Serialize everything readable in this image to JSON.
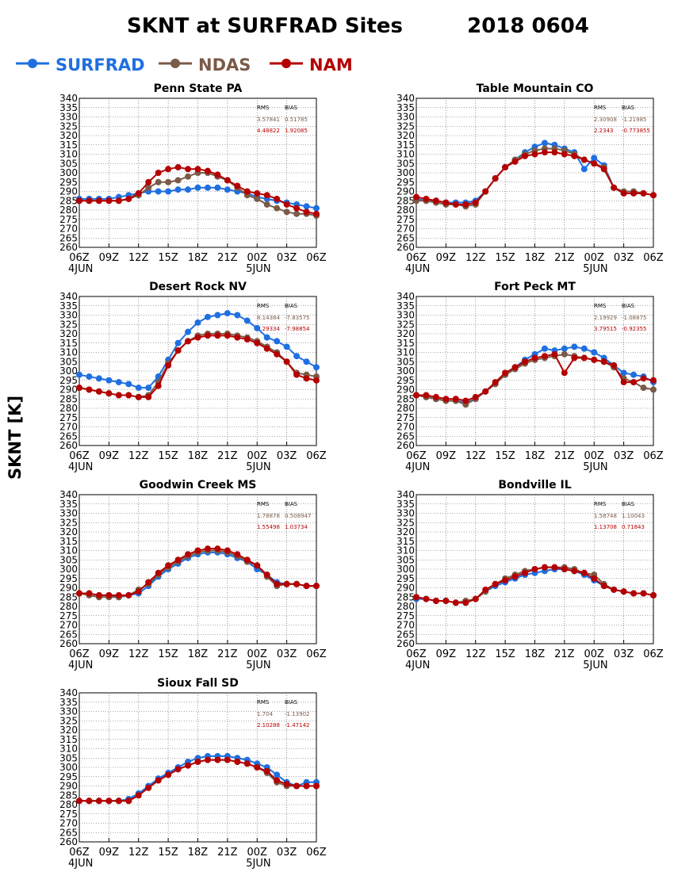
{
  "title": "SKNT at SURFRAD Sites",
  "date": "2018 0604",
  "ylabel": "SKNT [K]",
  "legend": [
    {
      "name": "SURFRAD",
      "color": "#1f6fe0"
    },
    {
      "name": "NDAS",
      "color": "#7a5a48"
    },
    {
      "name": "NAM",
      "color": "#b50000"
    }
  ],
  "stats_header": {
    "rms": "RMS",
    "bias": "BIAS"
  },
  "chart_data": [
    {
      "type": "line",
      "title": "Penn State PA",
      "ylim": [
        260,
        340
      ],
      "yticks": [
        260,
        265,
        270,
        275,
        280,
        285,
        290,
        295,
        300,
        305,
        310,
        315,
        320,
        325,
        330,
        335,
        340
      ],
      "xticks": [
        "06Z",
        "09Z",
        "12Z",
        "15Z",
        "18Z",
        "21Z",
        "00Z",
        "03Z",
        "06Z"
      ],
      "date_labels": [
        "4JUN",
        "5JUN"
      ],
      "x": [
        0,
        1,
        2,
        3,
        4,
        5,
        6,
        7,
        8,
        9,
        10,
        11,
        12,
        13,
        14,
        15,
        16,
        17,
        18,
        19,
        20,
        21,
        22,
        23,
        24
      ],
      "stats": [
        {
          "series": "NDAS",
          "rms": "3.57841",
          "bias": "0.51785"
        },
        {
          "series": "NAM",
          "rms": "4.48822",
          "bias": "1.92085"
        }
      ],
      "series": [
        {
          "name": "SURFRAD",
          "values": [
            286,
            286,
            286,
            286,
            287,
            288,
            289,
            290,
            290,
            290,
            291,
            291,
            292,
            292,
            292,
            291,
            290,
            289,
            287,
            286,
            285,
            284,
            283,
            282,
            281
          ]
        },
        {
          "name": "NDAS",
          "values": [
            285,
            285,
            285,
            285,
            285,
            286,
            288,
            292,
            295,
            295,
            296,
            298,
            300,
            300,
            298,
            296,
            292,
            288,
            286,
            283,
            281,
            279,
            278,
            278,
            277
          ]
        },
        {
          "name": "NAM",
          "values": [
            285,
            285,
            285,
            285,
            285,
            286,
            289,
            295,
            300,
            302,
            303,
            302,
            302,
            301,
            299,
            296,
            293,
            290,
            289,
            288,
            286,
            283,
            281,
            279,
            278
          ]
        }
      ]
    },
    {
      "type": "line",
      "title": "Table Mountain CO",
      "ylim": [
        260,
        340
      ],
      "yticks": [
        260,
        265,
        270,
        275,
        280,
        285,
        290,
        295,
        300,
        305,
        310,
        315,
        320,
        325,
        330,
        335,
        340
      ],
      "xticks": [
        "06Z",
        "09Z",
        "12Z",
        "15Z",
        "18Z",
        "21Z",
        "00Z",
        "03Z",
        "06Z"
      ],
      "date_labels": [
        "4JUN",
        "5JUN"
      ],
      "x": [
        0,
        1,
        2,
        3,
        4,
        5,
        6,
        7,
        8,
        9,
        10,
        11,
        12,
        13,
        14,
        15,
        16,
        17,
        18,
        19,
        20,
        21,
        22,
        23,
        24
      ],
      "stats": [
        {
          "series": "NDAS",
          "rms": "2.30908",
          "bias": "-1.21985"
        },
        {
          "series": "NAM",
          "rms": "2.2343",
          "bias": "-0.773855"
        }
      ],
      "series": [
        {
          "name": "SURFRAD",
          "values": [
            286,
            285,
            285,
            284,
            284,
            284,
            285,
            290,
            297,
            303,
            307,
            311,
            314,
            316,
            315,
            313,
            311,
            302,
            308,
            304,
            292,
            289,
            289,
            289,
            288
          ]
        },
        {
          "name": "NDAS",
          "values": [
            285,
            285,
            284,
            283,
            283,
            282,
            283,
            290,
            297,
            303,
            307,
            310,
            312,
            313,
            313,
            312,
            310,
            307,
            305,
            303,
            292,
            290,
            290,
            289,
            288
          ]
        },
        {
          "name": "NAM",
          "values": [
            287,
            286,
            285,
            284,
            283,
            283,
            284,
            290,
            297,
            303,
            306,
            309,
            310,
            311,
            311,
            310,
            309,
            307,
            305,
            302,
            292,
            289,
            289,
            289,
            288
          ]
        }
      ]
    },
    {
      "type": "line",
      "title": "Desert Rock NV",
      "ylim": [
        260,
        340
      ],
      "yticks": [
        260,
        265,
        270,
        275,
        280,
        285,
        290,
        295,
        300,
        305,
        310,
        315,
        320,
        325,
        330,
        335,
        340
      ],
      "xticks": [
        "06Z",
        "09Z",
        "12Z",
        "15Z",
        "18Z",
        "21Z",
        "00Z",
        "03Z",
        "06Z"
      ],
      "date_labels": [
        "4JUN",
        "5JUN"
      ],
      "x": [
        0,
        1,
        2,
        3,
        4,
        5,
        6,
        7,
        8,
        9,
        10,
        11,
        12,
        13,
        14,
        15,
        16,
        17,
        18,
        19,
        20,
        21,
        22,
        23,
        24
      ],
      "stats": [
        {
          "series": "NDAS",
          "rms": "8.14384",
          "bias": "-7.83575"
        },
        {
          "series": "NAM",
          "rms": "8.29334",
          "bias": "-7.98854"
        }
      ],
      "series": [
        {
          "name": "SURFRAD",
          "values": [
            298,
            297,
            296,
            295,
            294,
            293,
            291,
            291,
            297,
            306,
            315,
            321,
            326,
            329,
            330,
            331,
            330,
            327,
            323,
            318,
            316,
            313,
            308,
            305,
            302
          ]
        },
        {
          "name": "NDAS",
          "values": [
            291,
            290,
            289,
            288,
            287,
            287,
            286,
            287,
            294,
            304,
            311,
            316,
            319,
            320,
            320,
            320,
            319,
            318,
            316,
            313,
            310,
            305,
            299,
            298,
            297
          ]
        },
        {
          "name": "NAM",
          "values": [
            291,
            290,
            289,
            288,
            287,
            287,
            286,
            286,
            292,
            303,
            311,
            316,
            318,
            319,
            319,
            319,
            318,
            317,
            315,
            312,
            309,
            305,
            298,
            296,
            295
          ]
        }
      ]
    },
    {
      "type": "line",
      "title": "Fort Peck MT",
      "ylim": [
        260,
        340
      ],
      "yticks": [
        260,
        265,
        270,
        275,
        280,
        285,
        290,
        295,
        300,
        305,
        310,
        315,
        320,
        325,
        330,
        335,
        340
      ],
      "xticks": [
        "06Z",
        "09Z",
        "12Z",
        "15Z",
        "18Z",
        "21Z",
        "00Z",
        "03Z",
        "06Z"
      ],
      "date_labels": [
        "4JUN",
        "5JUN"
      ],
      "x": [
        0,
        1,
        2,
        3,
        4,
        5,
        6,
        7,
        8,
        9,
        10,
        11,
        12,
        13,
        14,
        15,
        16,
        17,
        18,
        19,
        20,
        21,
        22,
        23,
        24
      ],
      "stats": [
        {
          "series": "NDAS",
          "rms": "2.19929",
          "bias": "-1.08875"
        },
        {
          "series": "NAM",
          "rms": "3.79515",
          "bias": "-0.92355"
        }
      ],
      "series": [
        {
          "name": "SURFRAD",
          "values": [
            287,
            286,
            285,
            284,
            284,
            283,
            285,
            289,
            293,
            298,
            302,
            306,
            309,
            312,
            311,
            312,
            313,
            312,
            310,
            307,
            303,
            299,
            298,
            297,
            294
          ]
        },
        {
          "name": "NDAS",
          "values": [
            287,
            286,
            285,
            284,
            284,
            282,
            285,
            289,
            293,
            298,
            301,
            304,
            306,
            307,
            308,
            309,
            308,
            307,
            306,
            305,
            302,
            296,
            294,
            291,
            290
          ]
        },
        {
          "name": "NAM",
          "values": [
            287,
            287,
            286,
            285,
            285,
            284,
            286,
            289,
            294,
            299,
            302,
            305,
            307,
            308,
            309,
            299,
            307,
            307,
            306,
            305,
            303,
            294,
            294,
            296,
            295
          ]
        }
      ]
    },
    {
      "type": "line",
      "title": "Goodwin Creek MS",
      "ylim": [
        260,
        340
      ],
      "yticks": [
        260,
        265,
        270,
        275,
        280,
        285,
        290,
        295,
        300,
        305,
        310,
        315,
        320,
        325,
        330,
        335,
        340
      ],
      "xticks": [
        "06Z",
        "09Z",
        "12Z",
        "15Z",
        "18Z",
        "21Z",
        "00Z",
        "03Z",
        "06Z"
      ],
      "date_labels": [
        "4JUN",
        "5JUN"
      ],
      "x": [
        0,
        1,
        2,
        3,
        4,
        5,
        6,
        7,
        8,
        9,
        10,
        11,
        12,
        13,
        14,
        15,
        16,
        17,
        18,
        19,
        20,
        21,
        22,
        23,
        24
      ],
      "stats": [
        {
          "series": "NDAS",
          "rms": "1.78878",
          "bias": "0.508947"
        },
        {
          "series": "NAM",
          "rms": "1.55498",
          "bias": "1.03734"
        }
      ],
      "series": [
        {
          "name": "SURFRAD",
          "values": [
            287,
            287,
            286,
            286,
            285,
            286,
            287,
            291,
            296,
            300,
            303,
            306,
            308,
            309,
            309,
            308,
            306,
            304,
            300,
            297,
            293,
            292,
            292,
            291,
            291
          ]
        },
        {
          "name": "NDAS",
          "values": [
            287,
            286,
            285,
            285,
            285,
            286,
            289,
            292,
            297,
            301,
            304,
            307,
            309,
            310,
            310,
            309,
            307,
            304,
            302,
            296,
            291,
            292,
            292,
            291,
            291
          ]
        },
        {
          "name": "NAM",
          "values": [
            287,
            287,
            286,
            286,
            286,
            286,
            288,
            293,
            298,
            302,
            305,
            308,
            310,
            311,
            311,
            310,
            308,
            305,
            302,
            297,
            292,
            292,
            292,
            291,
            291
          ]
        }
      ]
    },
    {
      "type": "line",
      "title": "Bondville IL",
      "ylim": [
        260,
        340
      ],
      "yticks": [
        260,
        265,
        270,
        275,
        280,
        285,
        290,
        295,
        300,
        305,
        310,
        315,
        320,
        325,
        330,
        335,
        340
      ],
      "xticks": [
        "06Z",
        "09Z",
        "12Z",
        "15Z",
        "18Z",
        "21Z",
        "00Z",
        "03Z",
        "06Z"
      ],
      "date_labels": [
        "4JUN",
        "5JUN"
      ],
      "x": [
        0,
        1,
        2,
        3,
        4,
        5,
        6,
        7,
        8,
        9,
        10,
        11,
        12,
        13,
        14,
        15,
        16,
        17,
        18,
        19,
        20,
        21,
        22,
        23,
        24
      ],
      "stats": [
        {
          "series": "NDAS",
          "rms": "1.58748",
          "bias": "1.10043"
        },
        {
          "series": "NAM",
          "rms": "1.13708",
          "bias": "0.71843"
        }
      ],
      "series": [
        {
          "name": "SURFRAD",
          "values": [
            284,
            284,
            283,
            283,
            282,
            282,
            284,
            288,
            291,
            293,
            295,
            297,
            298,
            299,
            300,
            300,
            299,
            297,
            294,
            291,
            289,
            288,
            287,
            287,
            286
          ]
        },
        {
          "name": "NDAS",
          "values": [
            285,
            284,
            283,
            283,
            282,
            283,
            284,
            288,
            292,
            295,
            297,
            299,
            300,
            301,
            301,
            301,
            300,
            298,
            297,
            292,
            289,
            288,
            287,
            287,
            286
          ]
        },
        {
          "name": "NAM",
          "values": [
            285,
            284,
            283,
            283,
            282,
            282,
            284,
            289,
            292,
            294,
            296,
            298,
            300,
            301,
            301,
            300,
            299,
            298,
            295,
            291,
            289,
            288,
            287,
            287,
            286
          ]
        }
      ]
    },
    {
      "type": "line",
      "title": "Sioux Fall SD",
      "ylim": [
        260,
        340
      ],
      "yticks": [
        260,
        265,
        270,
        275,
        280,
        285,
        290,
        295,
        300,
        305,
        310,
        315,
        320,
        325,
        330,
        335,
        340
      ],
      "xticks": [
        "06Z",
        "09Z",
        "12Z",
        "15Z",
        "18Z",
        "21Z",
        "00Z",
        "03Z",
        "06Z"
      ],
      "date_labels": [
        "4JUN",
        "5JUN"
      ],
      "x": [
        0,
        1,
        2,
        3,
        4,
        5,
        6,
        7,
        8,
        9,
        10,
        11,
        12,
        13,
        14,
        15,
        16,
        17,
        18,
        19,
        20,
        21,
        22,
        23,
        24
      ],
      "stats": [
        {
          "series": "NDAS",
          "rms": "1.704",
          "bias": "-1.13902"
        },
        {
          "series": "NAM",
          "rms": "2.10288",
          "bias": "-1.47142"
        }
      ],
      "series": [
        {
          "name": "SURFRAD",
          "values": [
            282,
            282,
            282,
            282,
            282,
            283,
            286,
            290,
            294,
            297,
            300,
            303,
            305,
            306,
            306,
            306,
            305,
            304,
            302,
            300,
            296,
            292,
            290,
            292,
            292
          ]
        },
        {
          "name": "NDAS",
          "values": [
            282,
            282,
            282,
            282,
            282,
            282,
            285,
            289,
            293,
            296,
            299,
            301,
            303,
            304,
            304,
            304,
            303,
            302,
            300,
            297,
            292,
            290,
            290,
            290,
            290
          ]
        },
        {
          "name": "NAM",
          "values": [
            282,
            282,
            282,
            282,
            282,
            282,
            285,
            289,
            293,
            296,
            299,
            301,
            303,
            304,
            304,
            304,
            303,
            302,
            300,
            298,
            293,
            291,
            290,
            290,
            290
          ]
        }
      ]
    }
  ]
}
